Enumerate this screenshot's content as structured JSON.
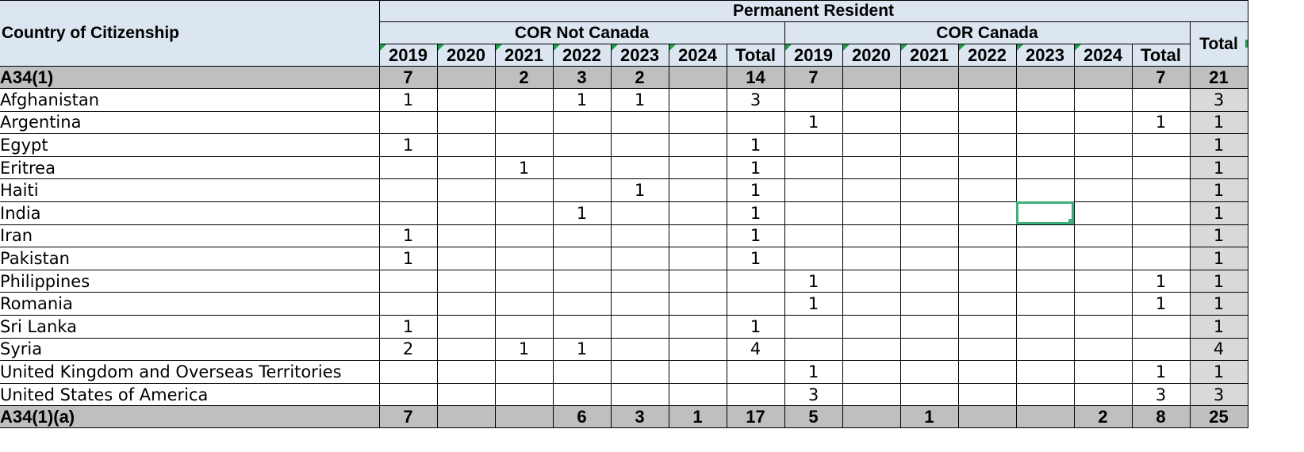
{
  "header": {
    "country_label": "Country of Citizenship",
    "group_label": "Permanent Resident",
    "sub_not_canada": "COR Not Canada",
    "sub_canada": "COR Canada",
    "total_label": "Total",
    "years": [
      "2019",
      "2020",
      "2021",
      "2022",
      "2023",
      "2024",
      "Total"
    ]
  },
  "group1": {
    "label": "A34(1)",
    "cells": [
      "7",
      "",
      "2",
      "3",
      "2",
      "",
      "14",
      "7",
      "",
      "",
      "",
      "",
      "",
      "7",
      "21"
    ]
  },
  "rows": [
    {
      "name": "Afghanistan",
      "cells": [
        "1",
        "",
        "",
        "1",
        "1",
        "",
        "3",
        "",
        "",
        "",
        "",
        "",
        "",
        "",
        "3"
      ]
    },
    {
      "name": "Argentina",
      "cells": [
        "",
        "",
        "",
        "",
        "",
        "",
        "",
        "1",
        "",
        "",
        "",
        "",
        "",
        "1",
        "1"
      ]
    },
    {
      "name": "Egypt",
      "cells": [
        "1",
        "",
        "",
        "",
        "",
        "",
        "1",
        "",
        "",
        "",
        "",
        "",
        "",
        "",
        "1"
      ]
    },
    {
      "name": "Eritrea",
      "cells": [
        "",
        "",
        "1",
        "",
        "",
        "",
        "1",
        "",
        "",
        "",
        "",
        "",
        "",
        "",
        "1"
      ]
    },
    {
      "name": "Haiti",
      "cells": [
        "",
        "",
        "",
        "",
        "1",
        "",
        "1",
        "",
        "",
        "",
        "",
        "",
        "",
        "",
        "1"
      ]
    },
    {
      "name": "India",
      "cells": [
        "",
        "",
        "",
        "1",
        "",
        "",
        "1",
        "",
        "",
        "",
        "",
        "",
        "",
        "",
        "1"
      ]
    },
    {
      "name": "Iran",
      "cells": [
        "1",
        "",
        "",
        "",
        "",
        "",
        "1",
        "",
        "",
        "",
        "",
        "",
        "",
        "",
        "1"
      ]
    },
    {
      "name": "Pakistan",
      "cells": [
        "1",
        "",
        "",
        "",
        "",
        "",
        "1",
        "",
        "",
        "",
        "",
        "",
        "",
        "",
        "1"
      ]
    },
    {
      "name": "Philippines",
      "cells": [
        "",
        "",
        "",
        "",
        "",
        "",
        "",
        "1",
        "",
        "",
        "",
        "",
        "",
        "1",
        "1"
      ]
    },
    {
      "name": "Romania",
      "cells": [
        "",
        "",
        "",
        "",
        "",
        "",
        "",
        "1",
        "",
        "",
        "",
        "",
        "",
        "1",
        "1"
      ]
    },
    {
      "name": "Sri Lanka",
      "cells": [
        "1",
        "",
        "",
        "",
        "",
        "",
        "1",
        "",
        "",
        "",
        "",
        "",
        "",
        "",
        "1"
      ]
    },
    {
      "name": "Syria",
      "cells": [
        "2",
        "",
        "1",
        "1",
        "",
        "",
        "4",
        "",
        "",
        "",
        "",
        "",
        "",
        "",
        "4"
      ]
    },
    {
      "name": "United Kingdom and Overseas Territories",
      "cells": [
        "",
        "",
        "",
        "",
        "",
        "",
        "",
        "1",
        "",
        "",
        "",
        "",
        "",
        "1",
        "1"
      ]
    },
    {
      "name": "United States of America",
      "cells": [
        "",
        "",
        "",
        "",
        "",
        "",
        "",
        "3",
        "",
        "",
        "",
        "",
        "",
        "3",
        "3"
      ]
    }
  ],
  "group2": {
    "label": "A34(1)(a)",
    "cells": [
      "7",
      "",
      "",
      "6",
      "3",
      "1",
      "17",
      "5",
      "",
      "1",
      "",
      "",
      "2",
      "8",
      "25"
    ]
  },
  "selection": {
    "row": "India",
    "column": "COR Canada 2023"
  },
  "colors": {
    "header_bg": "#dce6f1",
    "group_bg": "#bfbfbf",
    "total_bg": "#d9d9d9",
    "selection": "#3cb07a"
  }
}
